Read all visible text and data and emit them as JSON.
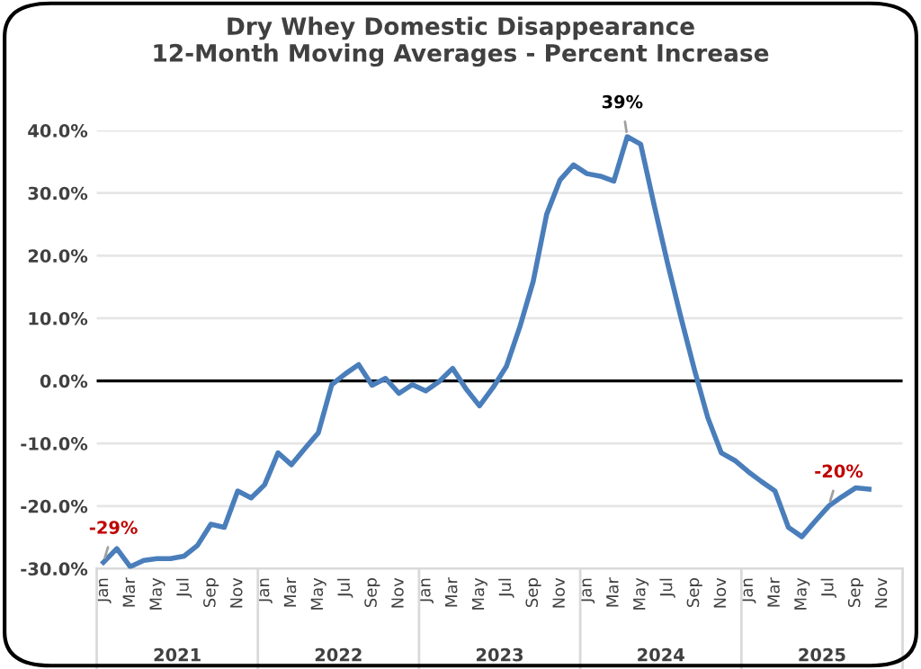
{
  "chart_data": {
    "type": "line",
    "title": "Dry Whey Domestic Disappearance\n12-Month Moving Averages - Percent Increase",
    "categories": [
      "Jan",
      null,
      "Mar",
      null,
      "May",
      null,
      "Jul",
      null,
      "Sep",
      null,
      "Nov",
      null,
      "Jan",
      null,
      "Mar",
      null,
      "May",
      null,
      "Jul",
      null,
      "Sep",
      null,
      "Nov",
      null,
      "Jan",
      null,
      "Mar",
      null,
      "May",
      null,
      "Jul",
      null,
      "Sep",
      null,
      "Nov",
      null,
      "Jan",
      null,
      "Mar",
      null,
      "May",
      null,
      "Jul",
      null,
      "Sep",
      null,
      "Nov",
      null,
      "Jan",
      null,
      "Mar",
      null,
      "May",
      null,
      "Jul",
      null,
      "Sep",
      null,
      "Nov",
      null
    ],
    "series": [
      {
        "color": "#4a7ebb",
        "values": [
          -29,
          -26.8,
          -29.7,
          -28.7,
          -28.4,
          -28.4,
          -28.0,
          -26.3,
          -22.9,
          -23.4,
          -17.6,
          -18.7,
          -16.6,
          -11.5,
          -13.4,
          -10.8,
          -8.3,
          -0.6,
          1.1,
          2.6,
          -0.7,
          0.4,
          -2.0,
          -0.6,
          -1.6,
          -0.1,
          2.0,
          -1.3,
          -4.0,
          -1.1,
          2.3,
          8.6,
          15.9,
          26.6,
          32.1,
          34.5,
          33.1,
          32.7,
          31.9,
          39,
          37.8,
          28.1,
          18.8,
          10.1,
          1.8,
          -5.9,
          -11.5,
          -12.7,
          -14.5,
          -16.1,
          -17.6,
          -23.4,
          -24.9,
          -22.4,
          -20,
          -18.5,
          -17.1,
          -17.3,
          null,
          null
        ],
        "value_labels": [
          "-29%",
          null,
          null,
          null,
          null,
          null,
          null,
          null,
          null,
          null,
          null,
          null,
          null,
          null,
          null,
          null,
          null,
          null,
          null,
          null,
          null,
          null,
          null,
          null,
          null,
          null,
          null,
          null,
          null,
          null,
          null,
          null,
          null,
          null,
          null,
          null,
          null,
          null,
          null,
          "39%",
          null,
          null,
          null,
          null,
          null,
          null,
          null,
          null,
          null,
          null,
          null,
          null,
          null,
          null,
          "-20%",
          null,
          null,
          null,
          null,
          null
        ]
      }
    ],
    "ylim": [
      -30,
      40
    ],
    "yticks": [
      {
        "value": -30,
        "label": "-30.0%"
      },
      {
        "value": -20,
        "label": "-20.0%"
      },
      {
        "value": -10,
        "label": "-10.0%"
      },
      {
        "value": 0,
        "label": "0.0%"
      },
      {
        "value": 10,
        "label": "10.0%"
      },
      {
        "value": 20,
        "label": "20.0%"
      },
      {
        "value": 30,
        "label": "30.0%"
      },
      {
        "value": 40,
        "label": "40.0%"
      }
    ],
    "ref_lines": [
      {
        "axis": "y",
        "value": 0,
        "color": "#000000"
      }
    ],
    "annotations": [
      "2021",
      "2022",
      "2023",
      "2024",
      "2025"
    ],
    "grid": "y",
    "legend": false,
    "marker": "none",
    "line_style": "solid"
  }
}
